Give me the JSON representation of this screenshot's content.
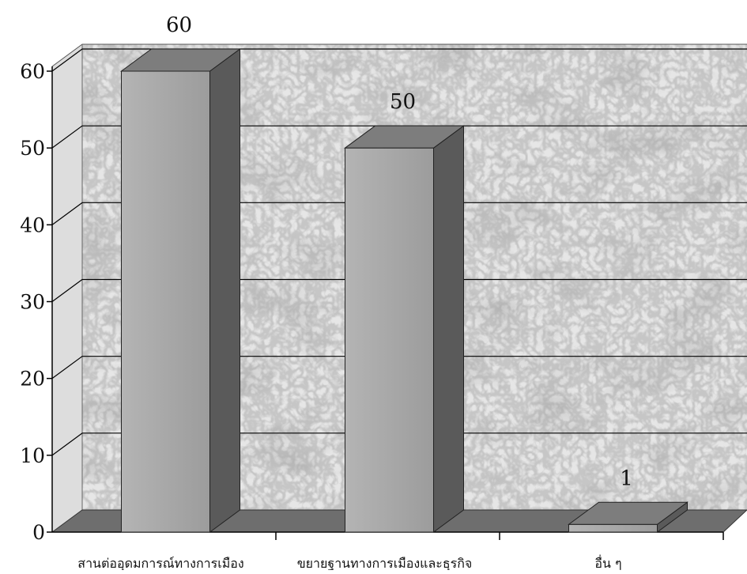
{
  "chart_data": {
    "type": "bar",
    "categories": [
      "สานต่ออุดมการณ์ทางการเมือง",
      "ขยายฐานทางการเมืองและธุรกิจ",
      "อื่น ๆ"
    ],
    "values": [
      60,
      50,
      1
    ],
    "data_labels": [
      "60",
      "50",
      "1"
    ],
    "ylim": [
      0,
      60
    ],
    "yticks": [
      "0",
      "10",
      "20",
      "30",
      "40",
      "50",
      "60"
    ],
    "grid": true,
    "style": "3d-bar",
    "background": "marble-texture"
  },
  "colors": {
    "bar_front": "#a9a9a9",
    "bar_side": "#5a5a5a",
    "bar_top": "#7d7d7d",
    "floor": "#6e6e6e",
    "wall": "#e6e6e6",
    "gridline": "#000000"
  }
}
